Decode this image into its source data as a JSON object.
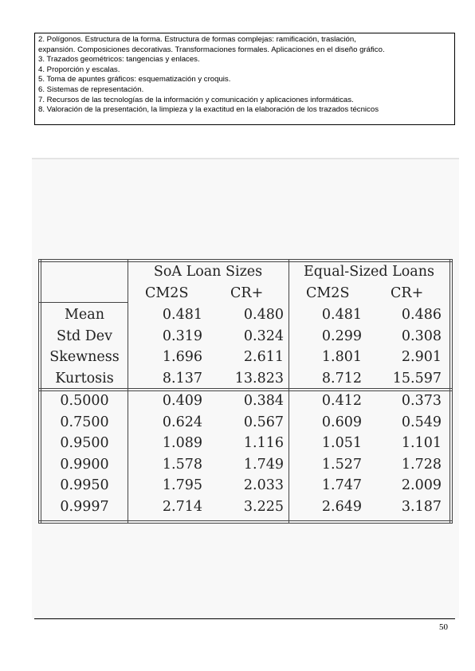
{
  "syllabus": {
    "lines": [
      "2.  Polígonos. Estructura de la forma. Estructura de formas complejas: ramificación, traslación,",
      "expansión.  Composiciones decorativas. Transformaciones formales. Aplicaciones en el diseño gráfico.",
      "3. Trazados geométricos: tangencias y enlaces.",
      "4.  Proporción y escalas.",
      "5. Toma de apuntes gráficos: esquematización y croquis.",
      "6. Sistemas de representación.",
      "7. Recursos de las tecnologías de la información y comunicación y aplicaciones informáticas.",
      "8. Valoración de la presentación, la limpieza y la exactitud en la elaboración de los trazados técnicos"
    ]
  },
  "table": {
    "group_headers": [
      "SoA Loan Sizes",
      "Equal-Sized Loans"
    ],
    "sub_headers": [
      "CM2S",
      "CR+",
      "CM2S",
      "CR+"
    ],
    "stats_rows": [
      {
        "label": "Mean",
        "values": [
          "0.481",
          "0.480",
          "0.481",
          "0.486"
        ]
      },
      {
        "label": "Std Dev",
        "values": [
          "0.319",
          "0.324",
          "0.299",
          "0.308"
        ]
      },
      {
        "label": "Skewness",
        "values": [
          "1.696",
          "2.611",
          "1.801",
          "2.901"
        ]
      },
      {
        "label": "Kurtosis",
        "values": [
          "8.137",
          "13.823",
          "8.712",
          "15.597"
        ]
      }
    ],
    "quantile_rows": [
      {
        "label": "0.5000",
        "values": [
          "0.409",
          "0.384",
          "0.412",
          "0.373"
        ]
      },
      {
        "label": "0.7500",
        "values": [
          "0.624",
          "0.567",
          "0.609",
          "0.549"
        ]
      },
      {
        "label": "0.9500",
        "values": [
          "1.089",
          "1.116",
          "1.051",
          "1.101"
        ]
      },
      {
        "label": "0.9900",
        "values": [
          "1.578",
          "1.749",
          "1.527",
          "1.728"
        ]
      },
      {
        "label": "0.9950",
        "values": [
          "1.795",
          "2.033",
          "1.747",
          "2.009"
        ]
      },
      {
        "label": "0.9997",
        "values": [
          "2.714",
          "3.225",
          "2.649",
          "3.187"
        ]
      }
    ]
  },
  "footer": {
    "page_number": "50"
  }
}
